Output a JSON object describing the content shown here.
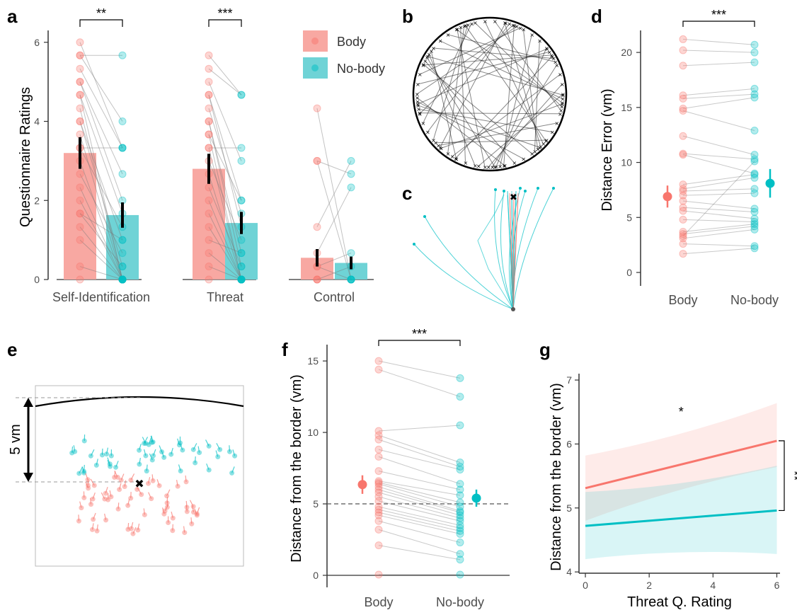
{
  "colors": {
    "body": "#F8766D",
    "nobody": "#00BFC4",
    "bar_body": "#F8A8A2",
    "bar_nobody": "#6FD3D6"
  },
  "panel_labels": {
    "a": "a",
    "b": "b",
    "c": "c",
    "d": "d",
    "e": "e",
    "f": "f",
    "g": "g"
  },
  "chart_data": [
    {
      "panel": "a",
      "type": "bar",
      "ylabel": "Questionnaire Ratings",
      "ylim": [
        0,
        6.3
      ],
      "yticks": [
        "0",
        "2",
        "4",
        "6"
      ],
      "categories": [
        "Self-Identification",
        "Threat",
        "Control"
      ],
      "series": [
        {
          "name": "Body",
          "values": [
            3.2,
            2.8,
            0.55
          ],
          "error": [
            0.4,
            0.38,
            0.22
          ]
        },
        {
          "name": "No-body",
          "values": [
            1.63,
            1.43,
            0.42
          ],
          "error": [
            0.32,
            0.28,
            0.16
          ]
        }
      ],
      "significance": [
        "**",
        "***",
        ""
      ],
      "legend": [
        "Body",
        "No-body"
      ],
      "legend_position": "top-right",
      "paired_points": [
        [
          [
            6.0,
            3.33
          ],
          [
            5.67,
            5.67
          ],
          [
            5.67,
            4.0
          ],
          [
            5.33,
            3.33
          ],
          [
            5.0,
            2.0
          ],
          [
            4.67,
            1.67
          ],
          [
            4.67,
            0.0
          ],
          [
            4.33,
            0.0
          ],
          [
            4.0,
            1.0
          ],
          [
            4.0,
            0.33
          ],
          [
            3.67,
            0.0
          ],
          [
            3.33,
            3.33
          ],
          [
            3.33,
            1.33
          ],
          [
            3.0,
            0.0
          ],
          [
            2.67,
            0.67
          ],
          [
            2.33,
            0.0
          ],
          [
            2.0,
            0.0
          ],
          [
            1.67,
            1.0
          ],
          [
            1.67,
            0.33
          ],
          [
            1.33,
            0.0
          ],
          [
            1.0,
            0.0
          ],
          [
            0.33,
            0.0
          ],
          [
            0.0,
            0.0
          ],
          [
            5.0,
            2.67
          ]
        ],
        [
          [
            5.67,
            4.67
          ],
          [
            5.33,
            4.67
          ],
          [
            5.0,
            3.0
          ],
          [
            4.67,
            2.0
          ],
          [
            4.33,
            1.67
          ],
          [
            4.0,
            0.67
          ],
          [
            4.0,
            0.33
          ],
          [
            3.67,
            0.0
          ],
          [
            3.33,
            0.0
          ],
          [
            3.33,
            3.33
          ],
          [
            3.0,
            1.0
          ],
          [
            2.67,
            0.0
          ],
          [
            2.33,
            0.33
          ],
          [
            2.0,
            0.0
          ],
          [
            1.67,
            0.0
          ],
          [
            1.0,
            0.67
          ],
          [
            0.67,
            0.0
          ],
          [
            0.33,
            0.0
          ],
          [
            0.0,
            0.0
          ],
          [
            3.67,
            2.0
          ],
          [
            4.67,
            1.33
          ],
          [
            1.33,
            0.0
          ]
        ],
        [
          [
            4.33,
            0.0
          ],
          [
            3.0,
            2.67
          ],
          [
            3.0,
            0.0
          ],
          [
            1.33,
            3.0
          ],
          [
            0.67,
            2.33
          ],
          [
            0.33,
            0.67
          ],
          [
            0.0,
            0.33
          ],
          [
            0.0,
            0.0
          ],
          [
            0.0,
            0.0
          ],
          [
            0.33,
            0.0
          ]
        ]
      ]
    },
    {
      "panel": "d",
      "type": "scatter",
      "ylabel": "Distance Error (vm)",
      "ylim": [
        0,
        22
      ],
      "yticks": [
        "0",
        "5",
        "10",
        "15",
        "20"
      ],
      "categories": [
        "Body",
        "No-body"
      ],
      "means": [
        6.9,
        8.1
      ],
      "error": [
        1.0,
        1.3
      ],
      "significance": "***",
      "paired_points": [
        [
          21.2,
          20.7
        ],
        [
          20.2,
          20.0
        ],
        [
          18.8,
          19.1
        ],
        [
          16.1,
          16.7
        ],
        [
          15.8,
          16.2
        ],
        [
          14.9,
          15.9
        ],
        [
          14.7,
          12.9
        ],
        [
          12.4,
          10.7
        ],
        [
          10.8,
          10.3
        ],
        [
          10.7,
          9.0
        ],
        [
          8.0,
          8.9
        ],
        [
          7.6,
          8.6
        ],
        [
          7.4,
          7.6
        ],
        [
          7.0,
          7.2
        ],
        [
          6.5,
          5.8
        ],
        [
          5.9,
          5.5
        ],
        [
          5.6,
          4.9
        ],
        [
          4.8,
          4.6
        ],
        [
          3.7,
          4.4
        ],
        [
          3.5,
          4.2
        ],
        [
          3.1,
          3.9
        ],
        [
          2.6,
          2.4
        ],
        [
          1.7,
          2.2
        ],
        [
          3.3,
          10.1
        ]
      ]
    },
    {
      "panel": "f",
      "type": "scatter",
      "ylabel": "Distance from the border (vm)",
      "ylim": [
        0,
        15.5
      ],
      "yticks": [
        "0",
        "5",
        "10",
        "15"
      ],
      "categories": [
        "Body",
        "No-body"
      ],
      "means": [
        6.35,
        5.4
      ],
      "error": [
        0.65,
        0.6
      ],
      "reference_line": 5,
      "significance": "***",
      "paired_points": [
        [
          15.0,
          13.8
        ],
        [
          14.4,
          12.5
        ],
        [
          10.1,
          10.5
        ],
        [
          9.8,
          7.9
        ],
        [
          9.5,
          7.6
        ],
        [
          8.8,
          7.4
        ],
        [
          8.3,
          6.4
        ],
        [
          7.3,
          6.0
        ],
        [
          6.6,
          5.6
        ],
        [
          6.5,
          5.1
        ],
        [
          6.4,
          4.8
        ],
        [
          6.2,
          4.5
        ],
        [
          6.0,
          4.4
        ],
        [
          5.8,
          4.2
        ],
        [
          5.5,
          4.0
        ],
        [
          5.2,
          3.8
        ],
        [
          4.8,
          3.5
        ],
        [
          4.6,
          3.3
        ],
        [
          4.4,
          3.1
        ],
        [
          4.2,
          2.9
        ],
        [
          3.8,
          2.3
        ],
        [
          3.2,
          1.5
        ],
        [
          2.1,
          1.1
        ],
        [
          0.05,
          0.05
        ]
      ]
    },
    {
      "panel": "g",
      "type": "line",
      "xlabel": "Threat Q. Rating",
      "ylabel": "Distance from the border (vm)",
      "xlim": [
        -0.2,
        6.1
      ],
      "ylim": [
        3.98,
        7.1
      ],
      "xticks": [
        "0",
        "2",
        "4",
        "6"
      ],
      "yticks": [
        "4",
        "5",
        "6",
        "7"
      ],
      "series": [
        {
          "name": "Body",
          "x": [
            0,
            6
          ],
          "y": [
            5.31,
            6.05
          ],
          "ci_lower": [
            4.8,
            5.64
          ],
          "ci_upper": [
            5.82,
            6.64
          ]
        },
        {
          "name": "No-body",
          "x": [
            0,
            6
          ],
          "y": [
            4.72,
            4.96
          ],
          "ci_lower": [
            4.2,
            4.28
          ],
          "ci_upper": [
            5.25,
            5.66
          ]
        }
      ],
      "annotations": [
        "*",
        "**"
      ]
    }
  ],
  "panel_e": {
    "scale_label": "5 vm"
  }
}
